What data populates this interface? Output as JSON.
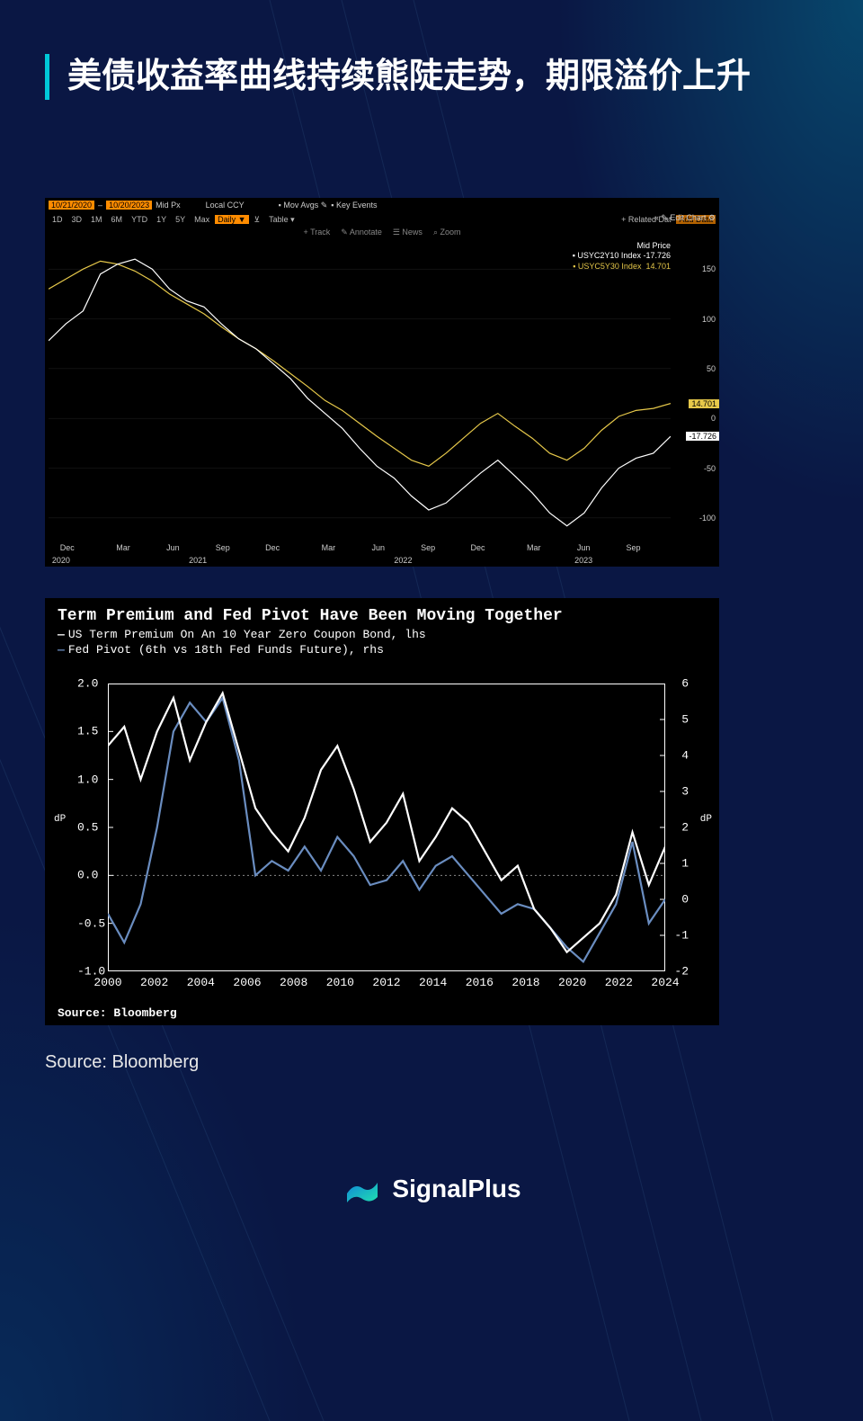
{
  "page": {
    "title": "美债收益率曲线持续熊陡走势，期限溢价上升",
    "outer_source": "Source: Bloomberg",
    "brand": "SignalPlus",
    "bg_primary": "#0a1744",
    "accent": "#00c8d8"
  },
  "chart1": {
    "type": "line",
    "date_from": "10/21/2020",
    "date_to": "10/20/2023",
    "mid_px": "Mid Px",
    "local_ccy": "Local CCY",
    "mov_avgs": "Mov Avgs",
    "key_events": "Key Events",
    "timeframes": [
      "1D",
      "3D",
      "1M",
      "6M",
      "YTD",
      "1Y",
      "5Y",
      "Max"
    ],
    "freq": "Daily ▼",
    "chart_icon": "⊻",
    "dropdown": "Table",
    "related": "+ Related Dat",
    "add_data": "Add Data",
    "edit": "« ✎ Edit Chart ⚙",
    "tools": [
      "+ Track",
      "✎ Annotate",
      "☰ News",
      "⌕ Zoom"
    ],
    "legend_title": "Mid Price",
    "series": [
      {
        "name": "USYC2Y10 Index",
        "value": "-17.726",
        "color": "#ffffff"
      },
      {
        "name": "USYC5Y30 Index",
        "value": "14.701",
        "color": "#e6c84a"
      }
    ],
    "ylim": [
      -120,
      180
    ],
    "yticks": [
      150,
      100,
      50,
      0,
      -50,
      -100
    ],
    "flags": [
      {
        "value": "14.701",
        "color": "#e6c84a"
      },
      {
        "value": "-17.726",
        "color": "#ffffff"
      }
    ],
    "xaxis": {
      "months": [
        {
          "label": "Dec",
          "pos": 3
        },
        {
          "label": "Mar",
          "pos": 12
        },
        {
          "label": "Jun",
          "pos": 20
        },
        {
          "label": "Sep",
          "pos": 28
        },
        {
          "label": "Dec",
          "pos": 36
        },
        {
          "label": "Mar",
          "pos": 45
        },
        {
          "label": "Jun",
          "pos": 53
        },
        {
          "label": "Sep",
          "pos": 61
        },
        {
          "label": "Dec",
          "pos": 69
        },
        {
          "label": "Mar",
          "pos": 78
        },
        {
          "label": "Jun",
          "pos": 86
        },
        {
          "label": "Sep",
          "pos": 94
        }
      ],
      "years": [
        {
          "label": "2020",
          "pos": 2
        },
        {
          "label": "2021",
          "pos": 24
        },
        {
          "label": "2022",
          "pos": 57
        },
        {
          "label": "2023",
          "pos": 86
        }
      ]
    },
    "background_color": "#000000",
    "grid_color": "#222222",
    "data_white": [
      78,
      95,
      108,
      145,
      155,
      160,
      150,
      130,
      118,
      112,
      95,
      80,
      70,
      55,
      40,
      20,
      5,
      -10,
      -30,
      -48,
      -60,
      -78,
      -92,
      -85,
      -70,
      -55,
      -42,
      -58,
      -75,
      -95,
      -108,
      -95,
      -70,
      -50,
      -40,
      -35,
      -18
    ],
    "data_yellow": [
      130,
      140,
      150,
      158,
      155,
      148,
      138,
      125,
      115,
      105,
      92,
      80,
      70,
      58,
      45,
      32,
      18,
      8,
      -5,
      -18,
      -30,
      -42,
      -48,
      -35,
      -20,
      -5,
      5,
      -8,
      -20,
      -35,
      -42,
      -30,
      -12,
      2,
      8,
      10,
      15
    ]
  },
  "chart2": {
    "type": "line",
    "title": "Term Premium and Fed Pivot Have Been Moving Together",
    "legend": [
      {
        "label": "US Term Premium On An 10 Year Zero Coupon Bond, lhs",
        "color": "#ffffff"
      },
      {
        "label": "Fed Pivot (6th vs 18th Fed Funds Future), rhs",
        "color": "#6a8dc0"
      }
    ],
    "ylimL": [
      -1.0,
      2.0
    ],
    "yticksL": [
      "2.0",
      "1.5",
      "1.0",
      "0.5",
      "0.0",
      "-0.5",
      "-1.0"
    ],
    "ylimR": [
      -2,
      6
    ],
    "yticksR": [
      "6",
      "5",
      "4",
      "3",
      "2",
      "1",
      "0",
      "-1",
      "-2"
    ],
    "axis_label": "dP",
    "xticks": [
      "2000",
      "2002",
      "2004",
      "2006",
      "2008",
      "2010",
      "2012",
      "2014",
      "2016",
      "2018",
      "2020",
      "2022",
      "2024"
    ],
    "source": "Source: Bloomberg",
    "background_color": "#000000",
    "grid_color": "#333333",
    "dotted_color": "#888888",
    "data_white": [
      1.35,
      1.55,
      1.0,
      1.5,
      1.85,
      1.2,
      1.6,
      1.9,
      1.3,
      0.7,
      0.45,
      0.25,
      0.6,
      1.1,
      1.35,
      0.9,
      0.35,
      0.55,
      0.85,
      0.15,
      0.4,
      0.7,
      0.55,
      0.25,
      -0.05,
      0.1,
      -0.35,
      -0.55,
      -0.8,
      -0.65,
      -0.5,
      -0.2,
      0.45,
      -0.1,
      0.3
    ],
    "data_blue": [
      -0.4,
      -0.7,
      -0.3,
      0.5,
      1.5,
      1.8,
      1.6,
      1.85,
      1.2,
      0.0,
      0.15,
      0.05,
      0.3,
      0.05,
      0.4,
      0.2,
      -0.1,
      -0.05,
      0.15,
      -0.15,
      0.1,
      0.2,
      0.0,
      -0.2,
      -0.4,
      -0.3,
      -0.35,
      -0.55,
      -0.75,
      -0.9,
      -0.6,
      -0.3,
      0.35,
      -0.5,
      -0.25
    ]
  }
}
